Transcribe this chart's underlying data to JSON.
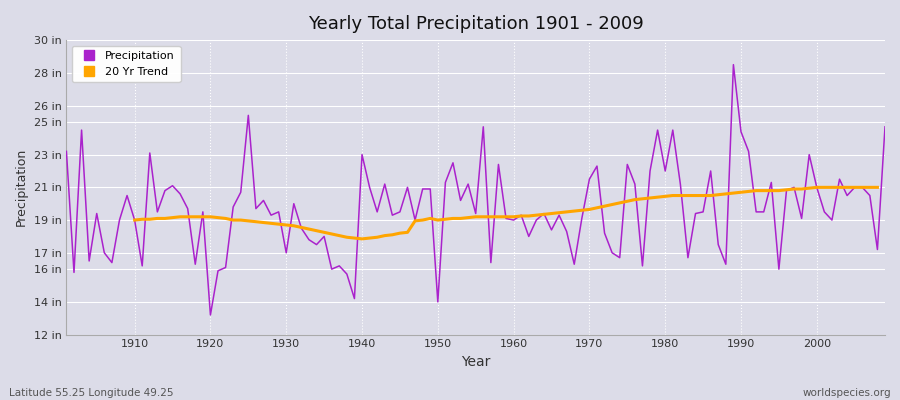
{
  "title": "Yearly Total Precipitation 1901 - 2009",
  "xlabel": "Year",
  "ylabel": "Precipitation",
  "lat_lon_label": "Latitude 55.25 Longitude 49.25",
  "worldspecies_label": "worldspecies.org",
  "precip_color": "#aa22cc",
  "trend_color": "#FFA500",
  "background_color": "#dcdce8",
  "plot_bg_color": "#dcdce8",
  "ylim": [
    12,
    30
  ],
  "yticks": [
    12,
    14,
    16,
    17,
    19,
    21,
    23,
    25,
    26,
    28,
    30
  ],
  "ytick_labels": [
    "12 in",
    "14 in",
    "16 in",
    "17 in",
    "19 in",
    "21 in",
    "23 in",
    "25 in",
    "26 in",
    "28 in",
    "30 in"
  ],
  "years": [
    1901,
    1902,
    1903,
    1904,
    1905,
    1906,
    1907,
    1908,
    1909,
    1910,
    1911,
    1912,
    1913,
    1914,
    1915,
    1916,
    1917,
    1918,
    1919,
    1920,
    1921,
    1922,
    1923,
    1924,
    1925,
    1926,
    1927,
    1928,
    1929,
    1930,
    1931,
    1932,
    1933,
    1934,
    1935,
    1936,
    1937,
    1938,
    1939,
    1940,
    1941,
    1942,
    1943,
    1944,
    1945,
    1946,
    1947,
    1948,
    1949,
    1950,
    1951,
    1952,
    1953,
    1954,
    1955,
    1956,
    1957,
    1958,
    1959,
    1960,
    1961,
    1962,
    1963,
    1964,
    1965,
    1966,
    1967,
    1968,
    1969,
    1970,
    1971,
    1972,
    1973,
    1974,
    1975,
    1976,
    1977,
    1978,
    1979,
    1980,
    1981,
    1982,
    1983,
    1984,
    1985,
    1986,
    1987,
    1988,
    1989,
    1990,
    1991,
    1992,
    1993,
    1994,
    1995,
    1996,
    1997,
    1998,
    1999,
    2000,
    2001,
    2002,
    2003,
    2004,
    2005,
    2006,
    2007,
    2008,
    2009
  ],
  "precipitation": [
    23.2,
    15.8,
    24.5,
    16.5,
    19.4,
    17.0,
    16.4,
    19.0,
    20.5,
    19.0,
    16.2,
    23.1,
    19.5,
    20.8,
    21.1,
    20.6,
    19.7,
    16.3,
    19.5,
    13.2,
    15.9,
    16.1,
    19.8,
    20.7,
    25.4,
    19.7,
    20.2,
    19.3,
    19.5,
    17.0,
    20.0,
    18.5,
    17.8,
    17.5,
    18.0,
    16.0,
    16.2,
    15.7,
    14.2,
    23.0,
    21.0,
    19.5,
    21.2,
    19.3,
    19.5,
    21.0,
    19.0,
    20.9,
    20.9,
    14.0,
    21.3,
    22.5,
    20.2,
    21.2,
    19.4,
    24.7,
    16.4,
    22.4,
    19.1,
    19.0,
    19.3,
    18.0,
    19.0,
    19.4,
    18.4,
    19.3,
    18.3,
    16.3,
    19.1,
    21.5,
    22.3,
    18.2,
    17.0,
    16.7,
    22.4,
    21.2,
    16.2,
    22.0,
    24.5,
    22.0,
    24.5,
    21.2,
    16.7,
    19.4,
    19.5,
    22.0,
    17.5,
    16.3,
    28.5,
    24.4,
    23.2,
    19.5,
    19.5,
    21.3,
    16.0,
    20.8,
    21.0,
    19.1,
    23.0,
    21.0,
    19.5,
    19.0,
    21.5,
    20.5,
    21.0,
    21.0,
    20.5,
    17.2,
    24.7
  ],
  "trend": [
    null,
    null,
    null,
    null,
    null,
    null,
    null,
    null,
    null,
    19.0,
    19.05,
    19.05,
    19.1,
    19.1,
    19.15,
    19.2,
    19.2,
    19.2,
    19.2,
    19.2,
    19.15,
    19.1,
    19.0,
    19.0,
    18.95,
    18.9,
    18.85,
    18.8,
    18.75,
    18.7,
    18.65,
    18.55,
    18.45,
    18.35,
    18.25,
    18.15,
    18.05,
    17.95,
    17.9,
    17.85,
    17.9,
    17.95,
    18.05,
    18.1,
    18.2,
    18.25,
    18.95,
    19.0,
    19.1,
    19.0,
    19.05,
    19.1,
    19.1,
    19.15,
    19.2,
    19.2,
    19.2,
    19.2,
    19.2,
    19.2,
    19.25,
    19.25,
    19.3,
    19.35,
    19.4,
    19.45,
    19.5,
    19.55,
    19.6,
    19.65,
    19.75,
    19.85,
    19.95,
    20.05,
    20.15,
    20.25,
    20.3,
    20.35,
    20.4,
    20.45,
    20.5,
    20.5,
    20.5,
    20.5,
    20.5,
    20.5,
    20.55,
    20.6,
    20.65,
    20.7,
    20.75,
    20.8,
    20.8,
    20.8,
    20.8,
    20.85,
    20.9,
    20.9,
    20.95,
    21.0,
    21.0,
    21.0,
    21.0,
    21.0,
    21.0,
    21.0,
    21.0,
    21.0
  ]
}
